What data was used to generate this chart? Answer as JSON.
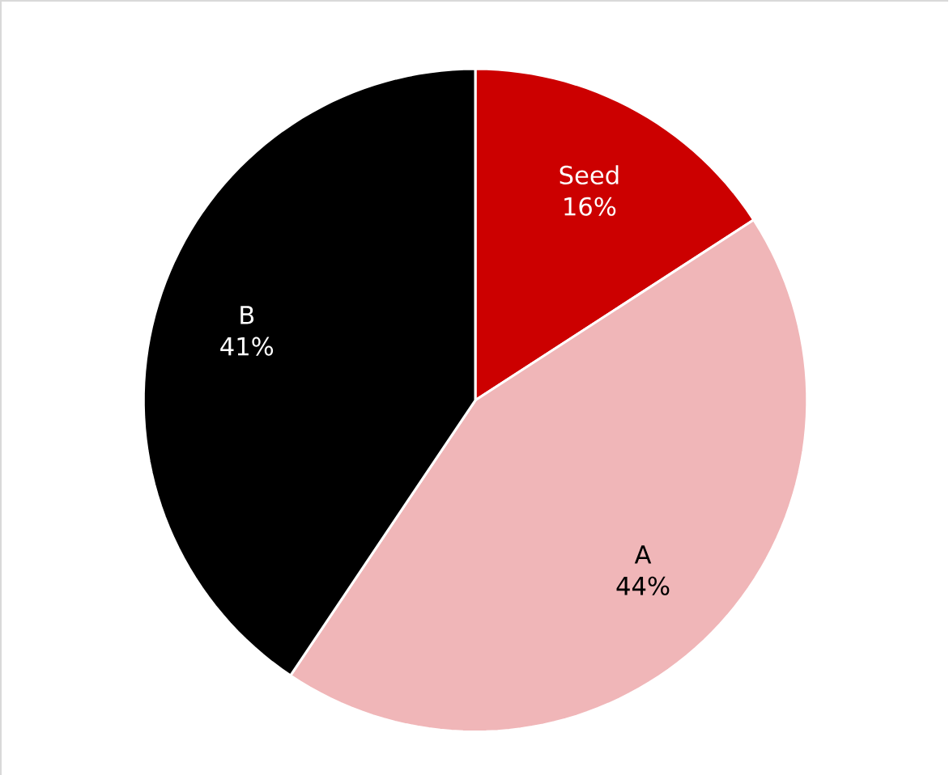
{
  "chart_data": {
    "type": "pie",
    "categories": [
      "Seed",
      "A",
      "B"
    ],
    "values": [
      16,
      44,
      41
    ],
    "value_labels": [
      "16%",
      "44%",
      "41%"
    ],
    "colors": [
      "#cc0000",
      "#f0b6b8",
      "#000000"
    ]
  }
}
